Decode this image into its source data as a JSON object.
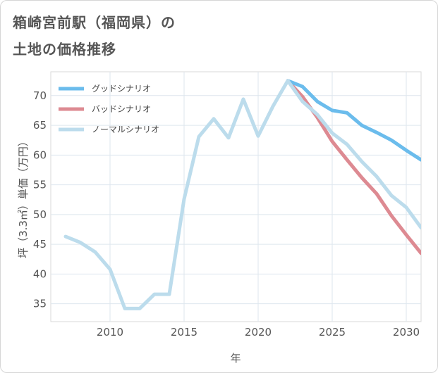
{
  "title_line1": "箱崎宮前駅（福岡県）の",
  "title_line2": "土地の価格推移",
  "chart_data": {
    "type": "line",
    "xlabel": "年",
    "ylabel": "坪（3.3㎡）単価（万円）",
    "xlim": [
      2006,
      2031
    ],
    "ylim": [
      32,
      74
    ],
    "xticks": [
      2010,
      2015,
      2020,
      2025,
      2030
    ],
    "yticks": [
      35,
      40,
      45,
      50,
      55,
      60,
      65,
      70
    ],
    "grid": true,
    "legend_position": "top-left",
    "series": [
      {
        "name": "グッドシナリオ",
        "color": "#6bbcec",
        "x": [
          2022,
          2023,
          2024,
          2025,
          2026,
          2027,
          2028,
          2029,
          2030,
          2031
        ],
        "values": [
          72.5,
          71.5,
          69.0,
          67.5,
          67.1,
          65.0,
          63.8,
          62.5,
          60.8,
          59.2
        ]
      },
      {
        "name": "バッドシナリオ",
        "color": "#dd8a92",
        "x": [
          2022,
          2023,
          2024,
          2025,
          2026,
          2027,
          2028,
          2029,
          2030,
          2031
        ],
        "values": [
          72.5,
          69.8,
          66.3,
          62.3,
          59.2,
          56.2,
          53.5,
          49.8,
          46.6,
          43.5
        ]
      },
      {
        "name": "ノーマルシナリオ",
        "color": "#bcdcec",
        "x": [
          2007,
          2008,
          2009,
          2010,
          2011,
          2012,
          2013,
          2014,
          2015,
          2016,
          2017,
          2018,
          2019,
          2020,
          2021,
          2022,
          2023,
          2024,
          2025,
          2026,
          2027,
          2028,
          2029,
          2030,
          2031
        ],
        "values": [
          46.3,
          45.3,
          43.7,
          40.8,
          34.2,
          34.2,
          36.6,
          36.6,
          52.6,
          63.1,
          66.1,
          62.9,
          69.4,
          63.2,
          68.2,
          72.5,
          69.0,
          66.8,
          63.7,
          61.8,
          58.9,
          56.4,
          53.2,
          51.2,
          47.8
        ]
      }
    ]
  }
}
